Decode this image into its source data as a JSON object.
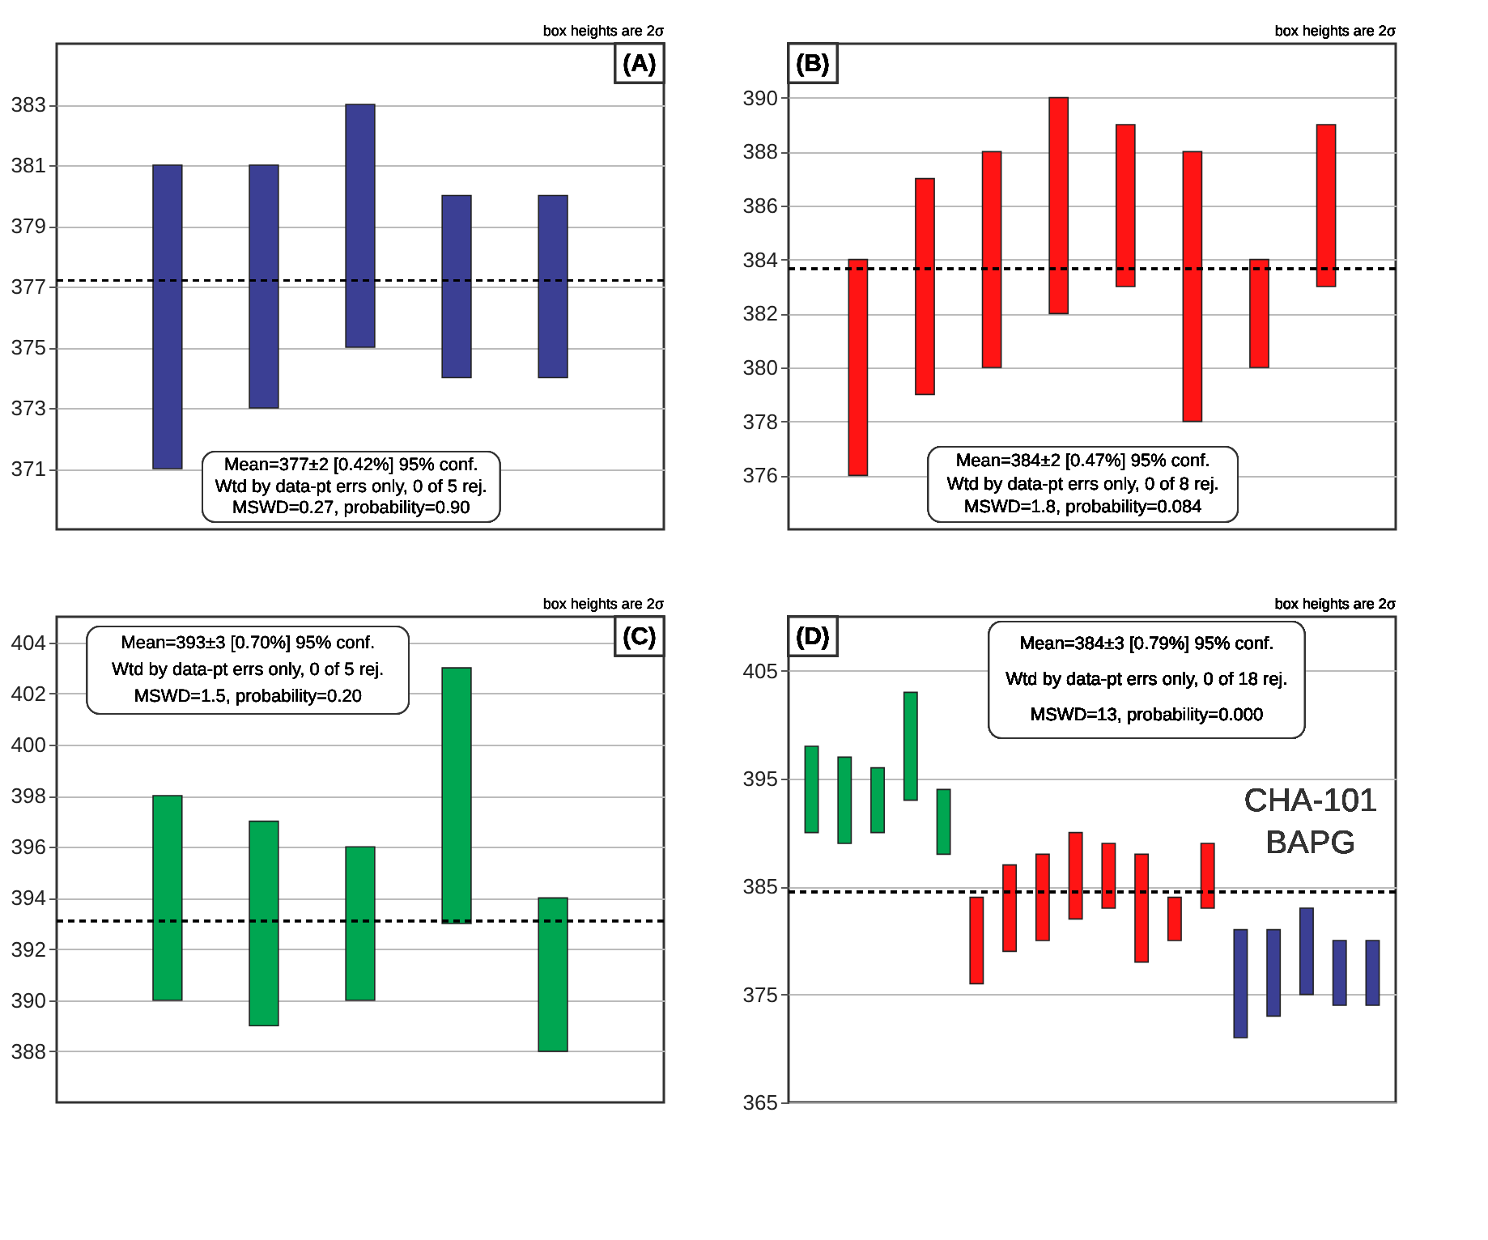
{
  "chart_data": [
    {
      "type": "bar",
      "categories": [
        null,
        null,
        null,
        null,
        null
      ],
      "base": [
        371,
        373,
        375,
        374,
        374
      ],
      "values": [
        10,
        8,
        8,
        6,
        6
      ],
      "colors": [
        "#3b3f94",
        "#3b3f94",
        "#3b3f94",
        "#3b3f94",
        "#3b3f94"
      ],
      "ylim": [
        369,
        385
      ],
      "yticks": [
        371,
        373,
        375,
        377,
        379,
        381,
        383
      ],
      "grid": "y",
      "tick_labels": "y",
      "ref_lines": [
        {
          "axis": "y",
          "value": 377.2,
          "line_style": "dashed",
          "color": "#000000"
        }
      ],
      "annotations": [
        "(A)",
        "box heights are 2σ",
        "Mean=377±2 [0.42%]  95% conf.",
        "Wtd by data-pt errs only, 0 of 5 rej.",
        "MSWD=0.27, probability=0.90"
      ]
    },
    {
      "type": "bar",
      "categories": [
        null,
        null,
        null,
        null,
        null,
        null,
        null,
        null
      ],
      "base": [
        376,
        379,
        380,
        382,
        383,
        378,
        380,
        383
      ],
      "values": [
        8,
        8,
        8,
        8,
        6,
        10,
        4,
        6
      ],
      "colors": [
        "#ff1414",
        "#ff1414",
        "#ff1414",
        "#ff1414",
        "#ff1414",
        "#ff1414",
        "#ff1414",
        "#ff1414"
      ],
      "ylim": [
        374,
        392
      ],
      "yticks": [
        376,
        378,
        380,
        382,
        384,
        386,
        388,
        390
      ],
      "grid": "y",
      "tick_labels": "y",
      "ref_lines": [
        {
          "axis": "y",
          "value": 383.65,
          "line_style": "dashed",
          "color": "#000000"
        }
      ],
      "annotations": [
        "(B)",
        "box heights are 2σ",
        "Mean=384±2 [0.47%]  95% conf.",
        "Wtd by data-pt errs only, 0 of 8 rej.",
        "MSWD=1.8, probability=0.084"
      ]
    },
    {
      "type": "bar",
      "categories": [
        null,
        null,
        null,
        null,
        null
      ],
      "base": [
        390,
        389,
        390,
        393,
        388
      ],
      "values": [
        8,
        8,
        6,
        10,
        6
      ],
      "colors": [
        "#00a651",
        "#00a651",
        "#00a651",
        "#00a651",
        "#00a651"
      ],
      "ylim": [
        386,
        405
      ],
      "yticks": [
        388,
        390,
        392,
        394,
        396,
        398,
        400,
        402,
        404
      ],
      "grid": "y",
      "tick_labels": "y",
      "ref_lines": [
        {
          "axis": "y",
          "value": 393.1,
          "line_style": "dashed",
          "color": "#000000"
        }
      ],
      "annotations": [
        "(C)",
        "box heights are 2σ",
        "Mean=393±3 [0.70%]  95% conf.",
        "Wtd by data-pt errs only, 0 of 5 rej.",
        "MSWD=1.5, probability=0.20"
      ]
    },
    {
      "type": "bar",
      "categories": [
        null,
        null,
        null,
        null,
        null,
        null,
        null,
        null,
        null,
        null,
        null,
        null,
        null,
        null,
        null,
        null,
        null,
        null
      ],
      "base": [
        390,
        389,
        390,
        393,
        388,
        376,
        379,
        380,
        382,
        383,
        378,
        380,
        383,
        371,
        373,
        375,
        374,
        374
      ],
      "values": [
        8,
        8,
        6,
        10,
        6,
        8,
        8,
        8,
        8,
        6,
        10,
        4,
        6,
        10,
        8,
        8,
        6,
        6
      ],
      "colors": [
        "#00a651",
        "#00a651",
        "#00a651",
        "#00a651",
        "#00a651",
        "#ff1414",
        "#ff1414",
        "#ff1414",
        "#ff1414",
        "#ff1414",
        "#ff1414",
        "#ff1414",
        "#ff1414",
        "#3b3f94",
        "#3b3f94",
        "#3b3f94",
        "#3b3f94",
        "#3b3f94"
      ],
      "ylim": [
        365,
        410
      ],
      "yticks": [
        365,
        375,
        385,
        395,
        405
      ],
      "grid": "y",
      "tick_labels": "y",
      "ref_lines": [
        {
          "axis": "y",
          "value": 384.5,
          "line_style": "dashed",
          "color": "#000000"
        }
      ],
      "annotations": [
        "(D)",
        "box heights are 2σ",
        "Mean=384±3 [0.79%]  95% conf.",
        "Wtd by data-pt errs only, 0 of 18 rej.",
        "MSWD=13, probability=0.000",
        "CHA-101",
        "BAPG"
      ]
    }
  ]
}
